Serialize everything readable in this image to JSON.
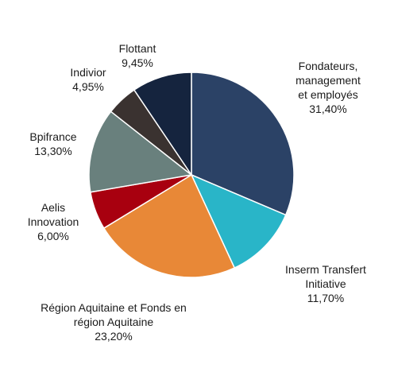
{
  "chart_data": {
    "type": "pie",
    "slices": [
      {
        "key": "fondateurs",
        "label_lines": [
          "Fondateurs,",
          "management",
          "et employés"
        ],
        "value_text": "31,40%",
        "value": 31.4,
        "color": "#2b4266"
      },
      {
        "key": "inserm",
        "label_lines": [
          "Inserm Transfert",
          "Initiative"
        ],
        "value_text": "11,70%",
        "value": 11.7,
        "color": "#29b5c8"
      },
      {
        "key": "region",
        "label_lines": [
          "Région Aquitaine et Fonds en",
          "région Aquitaine"
        ],
        "value_text": "23,20%",
        "value": 23.2,
        "color": "#e88837"
      },
      {
        "key": "aelis",
        "label_lines": [
          "Aelis",
          "Innovation"
        ],
        "value_text": "6,00%",
        "value": 6.0,
        "color": "#a8000f"
      },
      {
        "key": "bpifrance",
        "label_lines": [
          "Bpifrance"
        ],
        "value_text": "13,30%",
        "value": 13.3,
        "color": "#69807d"
      },
      {
        "key": "indivior",
        "label_lines": [
          "Indivior"
        ],
        "value_text": "4,95%",
        "value": 4.95,
        "color": "#3a3230"
      },
      {
        "key": "flottant",
        "label_lines": [
          "Flottant"
        ],
        "value_text": "9,45%",
        "value": 9.45,
        "color": "#15243e"
      }
    ]
  }
}
